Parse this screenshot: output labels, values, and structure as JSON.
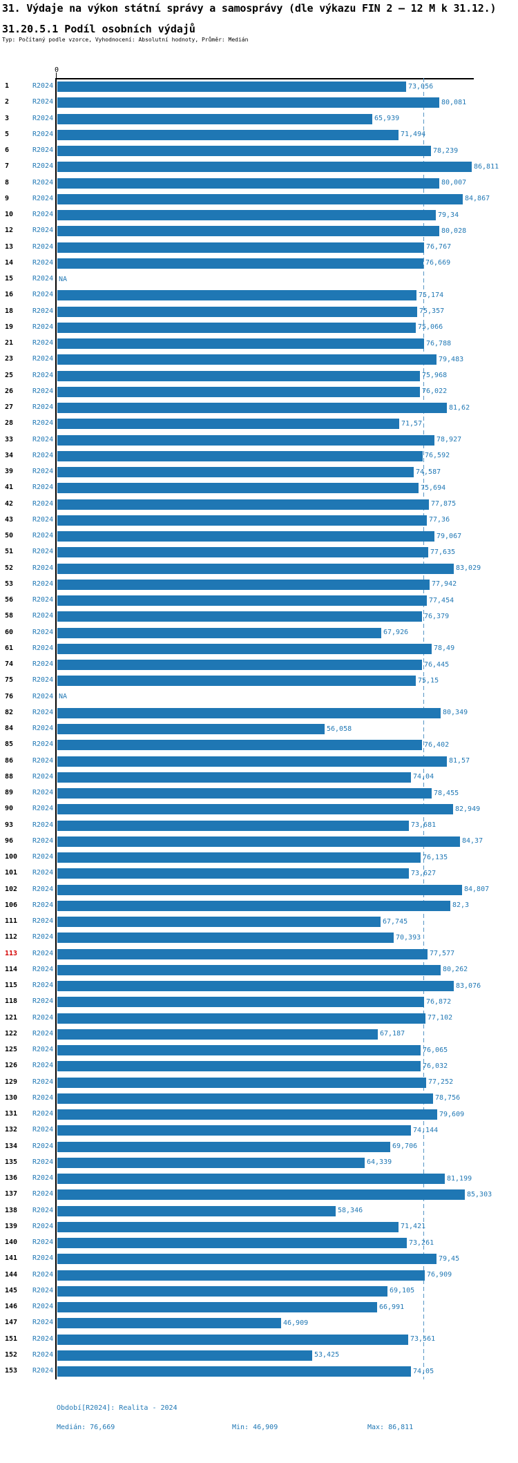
{
  "header": {
    "title": "31. Výdaje na výkon státní správy a samosprávy (dle výkazu FIN 2 – 12 M k 31.12.)",
    "subtitle": "31.20.5.1 Podíl osobních výdajů",
    "type_line": "Typ: Počítaný podle vzorce, Vyhodnocení: Absolutní hodnoty, Průměr: Medián"
  },
  "chart_data": {
    "type": "bar",
    "orientation": "horizontal",
    "axis_zero_label": "0",
    "series_label": "R2024",
    "x_min": 0,
    "x_max": 86.811,
    "median": 76.669,
    "median_line": true,
    "na_text": "NA",
    "highlighted_row": "113",
    "rows": [
      {
        "id": "1",
        "v": 73.056,
        "d": "73,056"
      },
      {
        "id": "2",
        "v": 80.081,
        "d": "80,081"
      },
      {
        "id": "3",
        "v": 65.939,
        "d": "65,939"
      },
      {
        "id": "5",
        "v": 71.494,
        "d": "71,494"
      },
      {
        "id": "6",
        "v": 78.239,
        "d": "78,239"
      },
      {
        "id": "7",
        "v": 86.811,
        "d": "86,811"
      },
      {
        "id": "8",
        "v": 80.007,
        "d": "80,007"
      },
      {
        "id": "9",
        "v": 84.867,
        "d": "84,867"
      },
      {
        "id": "10",
        "v": 79.34,
        "d": "79,34"
      },
      {
        "id": "12",
        "v": 80.028,
        "d": "80,028"
      },
      {
        "id": "13",
        "v": 76.767,
        "d": "76,767"
      },
      {
        "id": "14",
        "v": 76.669,
        "d": "76,669"
      },
      {
        "id": "15",
        "v": null,
        "d": "NA"
      },
      {
        "id": "16",
        "v": 75.174,
        "d": "75,174"
      },
      {
        "id": "18",
        "v": 75.357,
        "d": "75,357"
      },
      {
        "id": "19",
        "v": 75.066,
        "d": "75,066"
      },
      {
        "id": "21",
        "v": 76.788,
        "d": "76,788"
      },
      {
        "id": "23",
        "v": 79.483,
        "d": "79,483"
      },
      {
        "id": "25",
        "v": 75.968,
        "d": "75,968"
      },
      {
        "id": "26",
        "v": 76.022,
        "d": "76,022"
      },
      {
        "id": "27",
        "v": 81.62,
        "d": "81,62"
      },
      {
        "id": "28",
        "v": 71.57,
        "d": "71,57"
      },
      {
        "id": "33",
        "v": 78.927,
        "d": "78,927"
      },
      {
        "id": "34",
        "v": 76.592,
        "d": "76,592"
      },
      {
        "id": "39",
        "v": 74.587,
        "d": "74,587"
      },
      {
        "id": "41",
        "v": 75.694,
        "d": "75,694"
      },
      {
        "id": "42",
        "v": 77.875,
        "d": "77,875"
      },
      {
        "id": "43",
        "v": 77.36,
        "d": "77,36"
      },
      {
        "id": "50",
        "v": 79.067,
        "d": "79,067"
      },
      {
        "id": "51",
        "v": 77.635,
        "d": "77,635"
      },
      {
        "id": "52",
        "v": 83.029,
        "d": "83,029"
      },
      {
        "id": "53",
        "v": 77.942,
        "d": "77,942"
      },
      {
        "id": "56",
        "v": 77.454,
        "d": "77,454"
      },
      {
        "id": "58",
        "v": 76.379,
        "d": "76,379"
      },
      {
        "id": "60",
        "v": 67.926,
        "d": "67,926"
      },
      {
        "id": "61",
        "v": 78.49,
        "d": "78,49"
      },
      {
        "id": "74",
        "v": 76.445,
        "d": "76,445"
      },
      {
        "id": "75",
        "v": 75.15,
        "d": "75,15"
      },
      {
        "id": "76",
        "v": null,
        "d": "NA"
      },
      {
        "id": "82",
        "v": 80.349,
        "d": "80,349"
      },
      {
        "id": "84",
        "v": 56.058,
        "d": "56,058"
      },
      {
        "id": "85",
        "v": 76.402,
        "d": "76,402"
      },
      {
        "id": "86",
        "v": 81.57,
        "d": "81,57"
      },
      {
        "id": "88",
        "v": 74.04,
        "d": "74,04"
      },
      {
        "id": "89",
        "v": 78.455,
        "d": "78,455"
      },
      {
        "id": "90",
        "v": 82.949,
        "d": "82,949"
      },
      {
        "id": "93",
        "v": 73.681,
        "d": "73,681"
      },
      {
        "id": "96",
        "v": 84.37,
        "d": "84,37"
      },
      {
        "id": "100",
        "v": 76.135,
        "d": "76,135"
      },
      {
        "id": "101",
        "v": 73.627,
        "d": "73,627"
      },
      {
        "id": "102",
        "v": 84.807,
        "d": "84,807"
      },
      {
        "id": "106",
        "v": 82.3,
        "d": "82,3"
      },
      {
        "id": "111",
        "v": 67.745,
        "d": "67,745"
      },
      {
        "id": "112",
        "v": 70.393,
        "d": "70,393"
      },
      {
        "id": "113",
        "v": 77.577,
        "d": "77,577",
        "hl": true
      },
      {
        "id": "114",
        "v": 80.262,
        "d": "80,262"
      },
      {
        "id": "115",
        "v": 83.076,
        "d": "83,076"
      },
      {
        "id": "118",
        "v": 76.872,
        "d": "76,872"
      },
      {
        "id": "121",
        "v": 77.102,
        "d": "77,102"
      },
      {
        "id": "122",
        "v": 67.187,
        "d": "67,187"
      },
      {
        "id": "125",
        "v": 76.065,
        "d": "76,065"
      },
      {
        "id": "126",
        "v": 76.032,
        "d": "76,032"
      },
      {
        "id": "129",
        "v": 77.252,
        "d": "77,252"
      },
      {
        "id": "130",
        "v": 78.756,
        "d": "78,756"
      },
      {
        "id": "131",
        "v": 79.609,
        "d": "79,609"
      },
      {
        "id": "132",
        "v": 74.144,
        "d": "74,144"
      },
      {
        "id": "134",
        "v": 69.706,
        "d": "69,706"
      },
      {
        "id": "135",
        "v": 64.339,
        "d": "64,339"
      },
      {
        "id": "136",
        "v": 81.199,
        "d": "81,199"
      },
      {
        "id": "137",
        "v": 85.303,
        "d": "85,303"
      },
      {
        "id": "138",
        "v": 58.346,
        "d": "58,346"
      },
      {
        "id": "139",
        "v": 71.421,
        "d": "71,421"
      },
      {
        "id": "140",
        "v": 73.261,
        "d": "73,261"
      },
      {
        "id": "141",
        "v": 79.45,
        "d": "79,45"
      },
      {
        "id": "144",
        "v": 76.909,
        "d": "76,909"
      },
      {
        "id": "145",
        "v": 69.105,
        "d": "69,105"
      },
      {
        "id": "146",
        "v": 66.991,
        "d": "66,991"
      },
      {
        "id": "147",
        "v": 46.909,
        "d": "46,909"
      },
      {
        "id": "151",
        "v": 73.561,
        "d": "73,561"
      },
      {
        "id": "152",
        "v": 53.425,
        "d": "53,425"
      },
      {
        "id": "153",
        "v": 74.05,
        "d": "74,05"
      }
    ]
  },
  "footer": {
    "period": "Období[R2024]: Realita - 2024",
    "median": "Medián: 76,669",
    "min": "Min: 46,909",
    "max": "Max: 86,811"
  },
  "colors": {
    "bar": "#1f77b4",
    "value_label": "#1f77b4",
    "median_line": "#5494c4",
    "highlight_row_number": "#d40000",
    "axis": "#000000"
  }
}
